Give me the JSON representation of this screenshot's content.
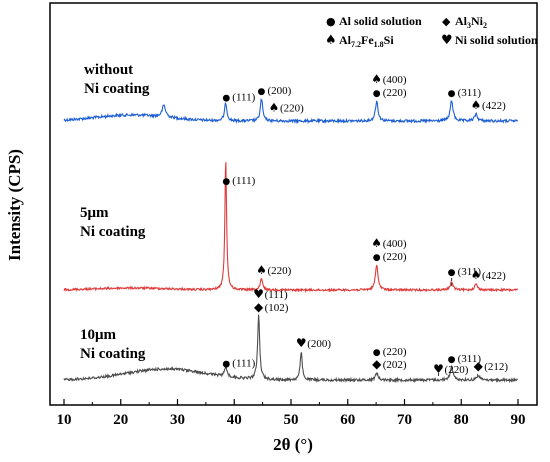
{
  "chart_data": {
    "type": "line",
    "xlabel": "2θ (°)",
    "ylabel": "Intensity (CPS)",
    "xlim": [
      10,
      90
    ],
    "xticks": [
      "10",
      "20",
      "30",
      "40",
      "50",
      "60",
      "70",
      "80",
      "90"
    ],
    "y_ticks_shown": false,
    "legend": {
      "placement": "top-right",
      "entries": [
        {
          "symbol": "circle",
          "glyph": "●",
          "text": "Al solid solution"
        },
        {
          "symbol": "diamond",
          "glyph": "◆",
          "text_main": "Al",
          "text_sub": "3",
          "text_tail": "Ni",
          "text_sub2": "2"
        },
        {
          "symbol": "spade",
          "glyph": "♠",
          "text_main": "Al",
          "text_sub": "7.2",
          "text_mid": "Fe",
          "text_sub2": "1.8",
          "text_tail": "Si"
        },
        {
          "symbol": "heart",
          "glyph": "♥",
          "text": "Ni solid solution"
        }
      ]
    },
    "series": [
      {
        "name_lines": [
          "without",
          "Ni coating"
        ],
        "color": "#1f5fd4",
        "baseline": 121,
        "noise": 1.3,
        "hump": {
          "center": 22,
          "width": 9,
          "height": 6
        },
        "peaks": [
          {
            "x": 27.6,
            "h": 12,
            "w": 0.35
          },
          {
            "x": 38.5,
            "h": 18,
            "w": 0.25
          },
          {
            "x": 44.8,
            "h": 22,
            "w": 0.25
          },
          {
            "x": 65.1,
            "h": 20,
            "w": 0.28
          },
          {
            "x": 78.3,
            "h": 20,
            "w": 0.3
          },
          {
            "x": 82.6,
            "h": 7,
            "w": 0.3
          }
        ],
        "annotations": [
          {
            "x": 38.6,
            "lines": [
              {
                "sym": "●",
                "text": "(111)"
              }
            ]
          },
          {
            "x": 44.8,
            "lines": [
              {
                "sym": "●",
                "text": "(200)"
              }
            ]
          },
          {
            "x": 47.0,
            "lines": [
              {
                "sym": "♠",
                "text": "(220)"
              }
            ],
            "offset": 4
          },
          {
            "x": 65.1,
            "lines": [
              {
                "sym": "♠",
                "text": "(400)"
              },
              {
                "sym": "●",
                "text": "(220)"
              }
            ]
          },
          {
            "x": 78.3,
            "lines": [
              {
                "sym": "●",
                "text": "(311)"
              }
            ]
          },
          {
            "x": 82.6,
            "lines": [
              {
                "sym": "♠",
                "text": "(422)"
              }
            ]
          }
        ]
      },
      {
        "name_lines": [
          "5μm",
          "Ni coating"
        ],
        "color": "#e03a3a",
        "baseline": 290,
        "noise": 1.0,
        "hump": {
          "center": 22,
          "width": 9,
          "height": 2
        },
        "peaks": [
          {
            "x": 38.5,
            "h": 132,
            "w": 0.18
          },
          {
            "x": 44.8,
            "h": 11,
            "w": 0.25
          },
          {
            "x": 65.1,
            "h": 25,
            "w": 0.28
          },
          {
            "x": 78.3,
            "h": 8,
            "w": 0.3
          },
          {
            "x": 82.6,
            "h": 6,
            "w": 0.3
          }
        ],
        "annotations": [
          {
            "x": 38.6,
            "lines": [
              {
                "sym": "●",
                "text": "(111)"
              }
            ]
          },
          {
            "x": 44.8,
            "lines": [
              {
                "sym": "♠",
                "text": "(220)"
              }
            ]
          },
          {
            "x": 65.1,
            "lines": [
              {
                "sym": "♠",
                "text": "(400)"
              },
              {
                "sym": "●",
                "text": "(220)"
              }
            ]
          },
          {
            "x": 78.3,
            "lines": [
              {
                "sym": "●",
                "text": "(311)"
              }
            ],
            "dashed": true
          },
          {
            "x": 82.6,
            "lines": [
              {
                "sym": "♠",
                "text": "(422)"
              }
            ]
          }
        ]
      },
      {
        "name_lines": [
          "10μm",
          "Ni coating"
        ],
        "color": "#4d4d4d",
        "baseline": 380,
        "noise": 1.3,
        "hump": {
          "center": 28,
          "width": 10,
          "height": 11
        },
        "peaks": [
          {
            "x": 38.5,
            "h": 10,
            "w": 0.25
          },
          {
            "x": 44.3,
            "h": 64,
            "w": 0.22
          },
          {
            "x": 51.8,
            "h": 28,
            "w": 0.22
          },
          {
            "x": 65.1,
            "h": 7,
            "w": 0.28
          },
          {
            "x": 78.3,
            "h": 13,
            "w": 0.3
          },
          {
            "x": 83.0,
            "h": 5,
            "w": 0.3
          }
        ],
        "annotations": [
          {
            "x": 38.6,
            "lines": [
              {
                "sym": "●",
                "text": "(111)"
              }
            ]
          },
          {
            "x": 44.3,
            "lines": [
              {
                "sym": "♥",
                "text": "(111)"
              },
              {
                "sym": "◆",
                "text": "(102)"
              }
            ]
          },
          {
            "x": 51.8,
            "lines": [
              {
                "sym": "♥",
                "text": "(200)"
              }
            ]
          },
          {
            "x": 65.1,
            "lines": [
              {
                "sym": "●",
                "text": "(220)"
              },
              {
                "sym": "◆",
                "text": "(202)"
              }
            ]
          },
          {
            "x": 76.0,
            "lines": [
              {
                "sym": "♥",
                "text": "(220)"
              }
            ],
            "dashed": true
          },
          {
            "x": 78.3,
            "lines": [
              {
                "sym": "●",
                "text": "(311)"
              }
            ]
          },
          {
            "x": 83.0,
            "lines": [
              {
                "sym": "◆",
                "text": "(212)"
              }
            ]
          }
        ]
      }
    ]
  }
}
